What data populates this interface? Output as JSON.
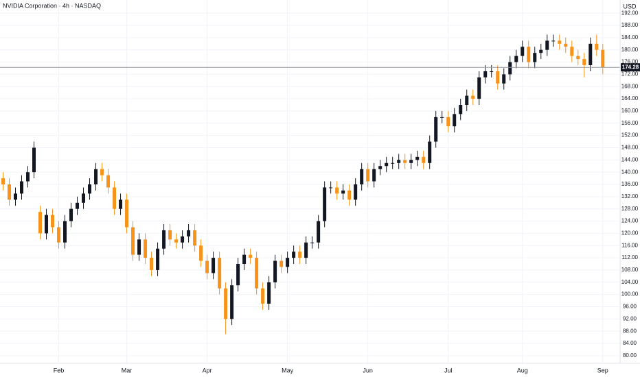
{
  "chart_data": {
    "type": "candlestick",
    "title": "NVIDIA Corporation · 4h · NASDAQ",
    "currency": "USD",
    "up_color": "#131722",
    "down_color": "#f7931a",
    "grid": true,
    "last_price": 174.28,
    "open": [
      138,
      136,
      131,
      133,
      137,
      140,
      127,
      120,
      126,
      122,
      117,
      124,
      128,
      130,
      133,
      136,
      141,
      139,
      135,
      128,
      131,
      122,
      113,
      118,
      112,
      108,
      115,
      121,
      118,
      117,
      119,
      121,
      116,
      111,
      107,
      112,
      102,
      92,
      103,
      110,
      113,
      112,
      102,
      97,
      104,
      111,
      109,
      112,
      114,
      112,
      117,
      117,
      124,
      135,
      135,
      133,
      134,
      131,
      136,
      141,
      137,
      141,
      142,
      143,
      143,
      144,
      143,
      144,
      145,
      143,
      150,
      158,
      158,
      155,
      159,
      162,
      165,
      164,
      171,
      173,
      173,
      169,
      172,
      176,
      178,
      181,
      176,
      179,
      180,
      183,
      183,
      182,
      181,
      178,
      177,
      175,
      182,
      180
    ],
    "high": [
      140,
      138,
      135,
      139,
      142,
      150,
      129,
      128,
      128,
      124,
      126,
      130,
      132,
      135,
      138,
      143,
      143,
      141,
      137,
      133,
      133,
      124,
      120,
      120,
      114,
      117,
      123,
      123,
      120,
      121,
      123,
      123,
      118,
      113,
      114,
      114,
      104,
      105,
      112,
      115,
      115,
      114,
      104,
      106,
      113,
      113,
      114,
      116,
      116,
      119,
      119,
      126,
      137,
      137,
      137,
      136,
      136,
      138,
      143,
      143,
      143,
      144,
      145,
      145,
      146,
      146,
      146,
      147,
      147,
      152,
      160,
      160,
      160,
      161,
      164,
      167,
      167,
      173,
      175,
      175,
      175,
      174,
      178,
      180,
      183,
      183,
      181,
      182,
      185,
      185,
      185,
      184,
      183,
      180,
      179,
      184,
      185,
      182
    ],
    "low": [
      134,
      129,
      129,
      131,
      135,
      138,
      118,
      118,
      120,
      115,
      115,
      122,
      126,
      128,
      131,
      134,
      137,
      133,
      126,
      126,
      120,
      111,
      111,
      110,
      106,
      106,
      113,
      116,
      115,
      115,
      117,
      114,
      109,
      105,
      105,
      100,
      87,
      90,
      101,
      108,
      110,
      100,
      95,
      95,
      102,
      107,
      107,
      110,
      110,
      110,
      115,
      115,
      122,
      133,
      131,
      131,
      129,
      129,
      134,
      135,
      135,
      139,
      140,
      141,
      141,
      141,
      141,
      142,
      141,
      141,
      148,
      156,
      153,
      153,
      157,
      160,
      162,
      162,
      169,
      171,
      167,
      167,
      170,
      174,
      176,
      174,
      174,
      177,
      178,
      181,
      180,
      179,
      176,
      175,
      171,
      173,
      178,
      172
    ],
    "close": [
      136,
      131,
      133,
      137,
      140,
      148,
      120,
      126,
      122,
      117,
      124,
      128,
      130,
      133,
      136,
      141,
      139,
      135,
      128,
      131,
      122,
      113,
      118,
      112,
      108,
      115,
      121,
      118,
      117,
      119,
      121,
      116,
      111,
      107,
      112,
      102,
      92,
      103,
      110,
      113,
      112,
      102,
      97,
      104,
      111,
      109,
      112,
      114,
      112,
      117,
      117,
      124,
      135,
      135,
      133,
      134,
      131,
      136,
      141,
      137,
      141,
      142,
      143,
      143,
      144,
      143,
      144,
      145,
      143,
      150,
      158,
      158,
      155,
      159,
      162,
      165,
      164,
      171,
      173,
      173,
      169,
      172,
      176,
      178,
      181,
      176,
      179,
      180,
      183,
      183,
      182,
      181,
      178,
      177,
      175,
      182,
      180,
      174.28
    ],
    "xlim": [
      -0.5,
      99.8
    ],
    "xticks": [
      {
        "value": 9,
        "label": "Feb"
      },
      {
        "value": 20,
        "label": "Mar"
      },
      {
        "value": 33,
        "label": "Apr"
      },
      {
        "value": 46,
        "label": "May"
      },
      {
        "value": 59,
        "label": "Jun"
      },
      {
        "value": 72,
        "label": "Jul"
      },
      {
        "value": 84,
        "label": "Aug"
      },
      {
        "value": 97,
        "label": "Sep"
      }
    ],
    "ylim": [
      77.5,
      196.3
    ],
    "yticks": [
      {
        "value": 80,
        "label": "80.00"
      },
      {
        "value": 84,
        "label": "84.00"
      },
      {
        "value": 88,
        "label": "88.00"
      },
      {
        "value": 92,
        "label": "92.00"
      },
      {
        "value": 96,
        "label": "96.00"
      },
      {
        "value": 100,
        "label": "100.00"
      },
      {
        "value": 104,
        "label": "104.00"
      },
      {
        "value": 108,
        "label": "108.00"
      },
      {
        "value": 112,
        "label": "112.00"
      },
      {
        "value": 116,
        "label": "116.00"
      },
      {
        "value": 120,
        "label": "120.00"
      },
      {
        "value": 124,
        "label": "124.00"
      },
      {
        "value": 128,
        "label": "128.00"
      },
      {
        "value": 132,
        "label": "132.00"
      },
      {
        "value": 136,
        "label": "136.00"
      },
      {
        "value": 140,
        "label": "140.00"
      },
      {
        "value": 144,
        "label": "144.00"
      },
      {
        "value": 148,
        "label": "148.00"
      },
      {
        "value": 152,
        "label": "152.00"
      },
      {
        "value": 156,
        "label": "156.00"
      },
      {
        "value": 160,
        "label": "160.00"
      },
      {
        "value": 164,
        "label": "164.00"
      },
      {
        "value": 168,
        "label": "168.00"
      },
      {
        "value": 172,
        "label": "172.00"
      },
      {
        "value": 176,
        "label": "176.00"
      },
      {
        "value": 180,
        "label": "180.00"
      },
      {
        "value": 184,
        "label": "184.00"
      },
      {
        "value": 188,
        "label": "188.00"
      },
      {
        "value": 192,
        "label": "192.00"
      }
    ]
  }
}
